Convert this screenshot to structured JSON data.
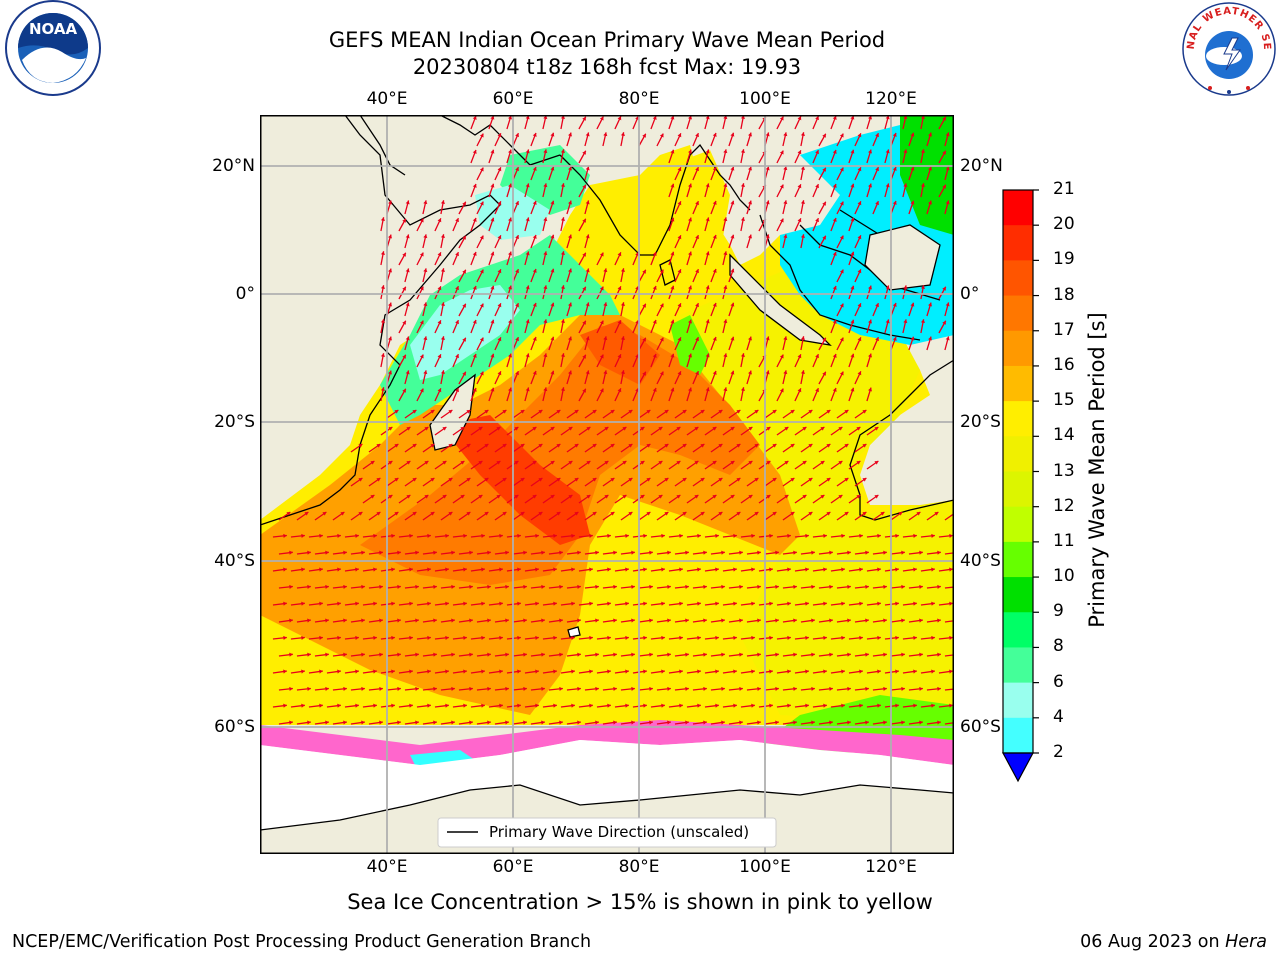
{
  "header": {
    "title_line1": "GEFS MEAN Indian Ocean Primary Wave Mean Period",
    "title_line2": "20230804 t18z 168h fcst   Max: 19.93"
  },
  "logos": {
    "left": "NOAA",
    "right_text": "NATIONAL WEATHER SERVICE"
  },
  "map": {
    "top_lon_labels": [
      "40°E",
      "60°E",
      "80°E",
      "100°E",
      "120°E"
    ],
    "bottom_lon_labels": [
      "40°E",
      "60°E",
      "80°E",
      "100°E",
      "120°E"
    ],
    "left_lat_labels": [
      "20°N",
      "0°",
      "20°S",
      "40°S",
      "60°S"
    ],
    "right_lat_labels": [
      "20°N",
      "0°",
      "20°S",
      "40°S",
      "60°S"
    ],
    "legend_label": "Primary Wave Direction (unscaled)",
    "field_max": 19.93
  },
  "colorbar": {
    "title": "Primary Wave Mean Period [s]",
    "tick_labels": [
      "21",
      "20",
      "19",
      "18",
      "17",
      "16",
      "15",
      "14",
      "13",
      "12",
      "11",
      "10",
      "9",
      "8",
      "6",
      "4",
      "2"
    ],
    "colors": [
      "#ff0000",
      "#ff2d00",
      "#ff5500",
      "#ff7700",
      "#ff9900",
      "#ffbb00",
      "#ffee00",
      "#f0f000",
      "#dcf500",
      "#c0ff00",
      "#66ff00",
      "#00e000",
      "#00ff66",
      "#44ff99",
      "#99ffee",
      "#44ffff",
      "#00eeff",
      "#0080ff"
    ],
    "under_color": "#0000ff"
  },
  "subtitle": "Sea Ice Concentration > 15% is shown in pink to yellow",
  "footer": {
    "left": "NCEP/EMC/Verification Post Processing Product Generation Branch",
    "right_date": "06 Aug 2023 on ",
    "right_host": "Hera"
  }
}
